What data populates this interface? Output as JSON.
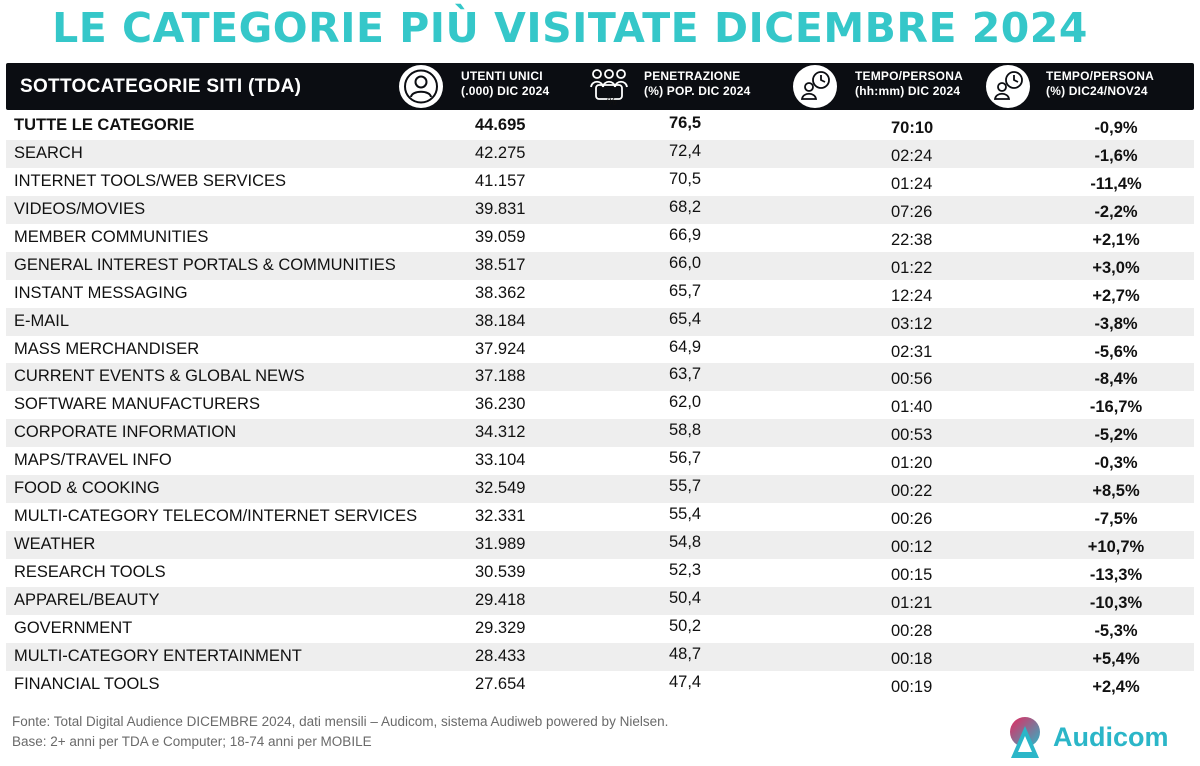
{
  "title": "LE CATEGORIE PIÙ VISITATE DICEMBRE 2024",
  "header": {
    "category": "SOTTOCATEGORIE SITI  (TDA)",
    "col1": [
      "UTENTI UNICI",
      "(.000) DIC 2024"
    ],
    "col2": [
      "PENETRAZIONE",
      "(%) POP. DIC 2024"
    ],
    "col2_icon_caption": "%",
    "col3": [
      "TEMPO/PERSONA",
      "(hh:mm) DIC 2024"
    ],
    "col4": [
      "TEMPO/PERSONA",
      "(%) DIC24/NOV24"
    ]
  },
  "rows": [
    {
      "name": "TUTTE LE CATEGORIE",
      "users": "44.695",
      "pen": "76,5",
      "time": "70:10",
      "var": "-0,9%"
    },
    {
      "name": "SEARCH",
      "users": "42.275",
      "pen": "72,4",
      "time": "02:24",
      "var": "-1,6%"
    },
    {
      "name": "INTERNET TOOLS/WEB SERVICES",
      "users": "41.157",
      "pen": "70,5",
      "time": "01:24",
      "var": "-11,4%"
    },
    {
      "name": "VIDEOS/MOVIES",
      "users": "39.831",
      "pen": "68,2",
      "time": "07:26",
      "var": "-2,2%"
    },
    {
      "name": "MEMBER COMMUNITIES",
      "users": "39.059",
      "pen": "66,9",
      "time": "22:38",
      "var": "+2,1%"
    },
    {
      "name": "GENERAL INTEREST PORTALS & COMMUNITIES",
      "users": "38.517",
      "pen": "66,0",
      "time": "01:22",
      "var": "+3,0%"
    },
    {
      "name": "INSTANT MESSAGING",
      "users": "38.362",
      "pen": "65,7",
      "time": "12:24",
      "var": "+2,7%"
    },
    {
      "name": "E-MAIL",
      "users": "38.184",
      "pen": "65,4",
      "time": "03:12",
      "var": "-3,8%"
    },
    {
      "name": "MASS MERCHANDISER",
      "users": "37.924",
      "pen": "64,9",
      "time": "02:31",
      "var": "-5,6%"
    },
    {
      "name": "CURRENT EVENTS & GLOBAL NEWS",
      "users": "37.188",
      "pen": "63,7",
      "time": "00:56",
      "var": "-8,4%"
    },
    {
      "name": "SOFTWARE MANUFACTURERS",
      "users": "36.230",
      "pen": "62,0",
      "time": "01:40",
      "var": "-16,7%"
    },
    {
      "name": "CORPORATE INFORMATION",
      "users": "34.312",
      "pen": "58,8",
      "time": "00:53",
      "var": "-5,2%"
    },
    {
      "name": "MAPS/TRAVEL INFO",
      "users": "33.104",
      "pen": "56,7",
      "time": "01:20",
      "var": "-0,3%"
    },
    {
      "name": "FOOD & COOKING",
      "users": "32.549",
      "pen": "55,7",
      "time": "00:22",
      "var": "+8,5%"
    },
    {
      "name": "MULTI-CATEGORY TELECOM/INTERNET SERVICES",
      "users": "32.331",
      "pen": "55,4",
      "time": "00:26",
      "var": "-7,5%"
    },
    {
      "name": "WEATHER",
      "users": "31.989",
      "pen": "54,8",
      "time": "00:12",
      "var": "+10,7%"
    },
    {
      "name": "RESEARCH TOOLS",
      "users": "30.539",
      "pen": "52,3",
      "time": "00:15",
      "var": "-13,3%"
    },
    {
      "name": "APPAREL/BEAUTY",
      "users": "29.418",
      "pen": "50,4",
      "time": "01:21",
      "var": "-10,3%"
    },
    {
      "name": "GOVERNMENT",
      "users": "29.329",
      "pen": "50,2",
      "time": "00:28",
      "var": "-5,3%"
    },
    {
      "name": "MULTI-CATEGORY ENTERTAINMENT",
      "users": "28.433",
      "pen": "48,7",
      "time": "00:18",
      "var": "+5,4%"
    },
    {
      "name": "FINANCIAL TOOLS",
      "users": "27.654",
      "pen": "47,4",
      "time": "00:19",
      "var": "+2,4%"
    }
  ],
  "footer": {
    "source": "Fonte: Total Digital Audience DICEMBRE 2024, dati mensili – Audicom, sistema Audiweb powered by Nielsen.",
    "base": "Base: 2+ anni per TDA e Computer; 18-74 anni per MOBILE"
  },
  "logo": {
    "text": "Audicom"
  },
  "icons": [
    "user-icon",
    "people-percent-icon",
    "clock-person-icon",
    "clock-person-icon"
  ],
  "colors": {
    "title": "#35c7c9",
    "header_bg": "#0b0d12",
    "stripe": "#eeeeee",
    "brand": "#2bb6c8"
  }
}
